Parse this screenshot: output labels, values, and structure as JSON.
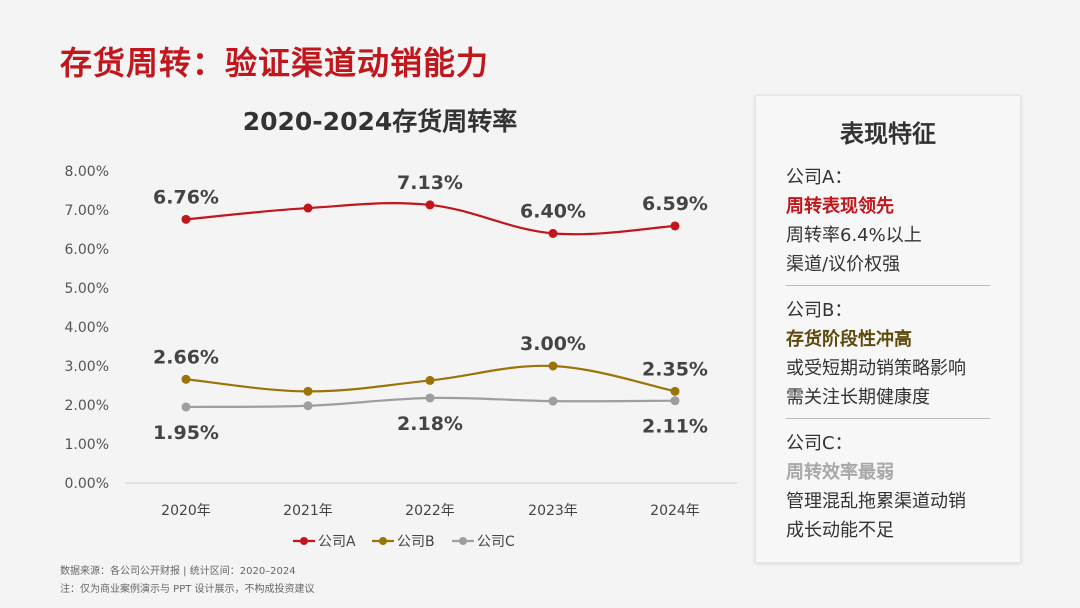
{
  "page_title": "存货周转：验证渠道动销能力",
  "colors": {
    "a": "#c0161c",
    "b": "#9a7408",
    "c": "#9e9e9e",
    "title": "#c0161c"
  },
  "chart_data": {
    "type": "line",
    "title": "2020-2024存货周转率",
    "categories": [
      "2020年",
      "2021年",
      "2022年",
      "2023年",
      "2024年"
    ],
    "ylim": [
      0,
      8
    ],
    "yticks": [
      "0.00%",
      "1.00%",
      "2.00%",
      "3.00%",
      "4.00%",
      "5.00%",
      "6.00%",
      "7.00%",
      "8.00%"
    ],
    "series": [
      {
        "name": "公司A",
        "values": [
          6.76,
          7.05,
          7.13,
          6.4,
          6.59
        ],
        "color": "#c0161c",
        "labels": [
          "6.76%",
          "",
          "7.13%",
          "6.40%",
          "6.59%"
        ],
        "label_pos": "above"
      },
      {
        "name": "公司B",
        "values": [
          2.66,
          2.35,
          2.63,
          3.0,
          2.35
        ],
        "color": "#9a7408",
        "labels": [
          "2.66%",
          "",
          "",
          "3.00%",
          "2.35%"
        ],
        "label_pos": "above"
      },
      {
        "name": "公司C",
        "values": [
          1.95,
          1.98,
          2.18,
          2.1,
          2.11
        ],
        "color": "#9e9e9e",
        "labels": [
          "1.95%",
          "",
          "2.18%",
          "",
          "2.11%"
        ],
        "label_pos": "below"
      }
    ]
  },
  "panel": {
    "title": "表现特征",
    "sections": [
      {
        "company": "公司A：",
        "highlight": "周转表现领先",
        "lines": [
          "周转率6.4%以上",
          "渠道/议价权强"
        ]
      },
      {
        "company": "公司B：",
        "highlight": "存货阶段性冲高",
        "lines": [
          "或受短期动销策略影响",
          "需关注长期健康度"
        ]
      },
      {
        "company": "公司C：",
        "highlight": "周转效率最弱",
        "lines": [
          "管理混乱拖累渠道动销",
          "成长动能不足"
        ]
      }
    ]
  },
  "footer": {
    "source": "数据来源：各公司公开财报 | 统计区间：2020–2024",
    "note": "注：仅为商业案例演示与 PPT 设计展示，不构成投资建议"
  }
}
